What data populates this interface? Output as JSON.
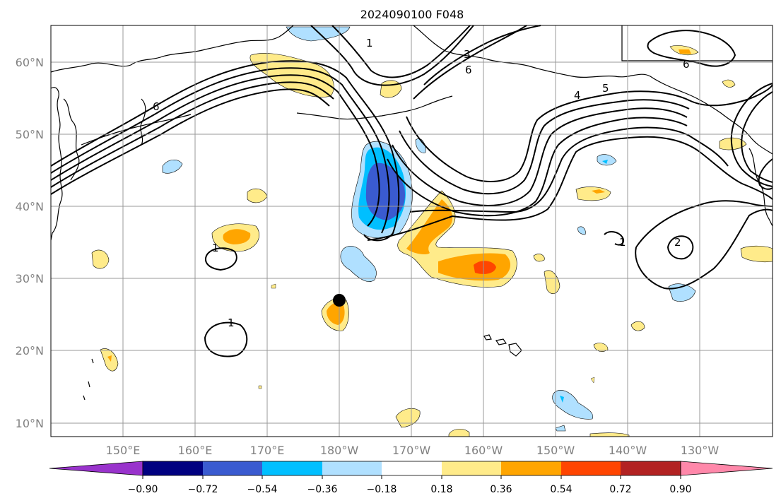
{
  "title": "2024090100 F048",
  "map": {
    "lat_labels": [
      "60°N",
      "50°N",
      "40°N",
      "30°N",
      "20°N",
      "10°N"
    ],
    "lon_labels": [
      "150°E",
      "160°E",
      "170°E",
      "180°W",
      "170°W",
      "160°W",
      "150°W",
      "140°W",
      "130°W"
    ],
    "contour_labels": [
      "1",
      "1",
      "1",
      "1",
      "2",
      "3",
      "4",
      "5",
      "6",
      "6",
      "6"
    ],
    "marker": {
      "lat": 27,
      "lon": -180
    }
  },
  "colorbar": {
    "ticks": [
      "−0.90",
      "−0.72",
      "−0.54",
      "−0.36",
      "−0.18",
      "0.18",
      "0.36",
      "0.54",
      "0.72",
      "0.90"
    ],
    "colors": [
      "#9933cc",
      "#000080",
      "#3a5bd0",
      "#00bfff",
      "#b0e0ff",
      "#ffffff",
      "#ffeb8a",
      "#ffa500",
      "#ff4500",
      "#b22222",
      "#ff88aa"
    ],
    "extend": "both"
  },
  "palette": {
    "light_yellow": "#ffeb8a",
    "orange": "#ffa500",
    "red_orange": "#ff4500",
    "light_blue": "#b0e0ff",
    "sky_blue": "#00bfff",
    "royal_blue": "#3a5bd0"
  }
}
